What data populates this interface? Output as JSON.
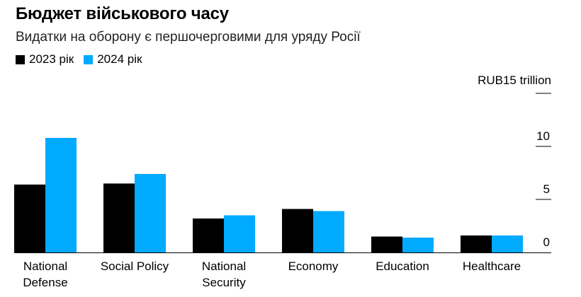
{
  "chart_data": {
    "type": "bar",
    "title": "Бюджет військового часу",
    "subtitle": "Видатки на оборону є першочерговими для уряду Росії",
    "unit_label": "RUB15 trillion",
    "categories": [
      [
        "National",
        "Defense"
      ],
      [
        "Social Policy"
      ],
      [
        "National",
        "Security"
      ],
      [
        "Economy"
      ],
      [
        "Education"
      ],
      [
        "Healthcare"
      ]
    ],
    "series": [
      {
        "name": "2023 рік",
        "color": "#000000",
        "values": [
          6.4,
          6.5,
          3.2,
          4.1,
          1.5,
          1.6
        ]
      },
      {
        "name": "2024 рік",
        "color": "#00aaff",
        "values": [
          10.8,
          7.4,
          3.5,
          3.9,
          1.4,
          1.6
        ]
      }
    ],
    "ylim": [
      0,
      15
    ],
    "yticks": [
      0,
      5,
      10
    ],
    "grid": false,
    "legend_position": "top-left"
  }
}
